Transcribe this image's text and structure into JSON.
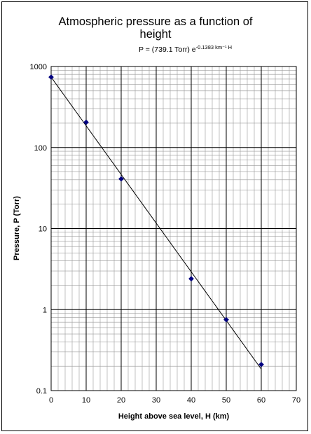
{
  "chart_data": {
    "type": "scatter",
    "title_line1": "Atmospheric pressure as a function of",
    "title_line2": "height",
    "equation": {
      "prefix": "P = (739.1 Torr) e",
      "exponent": "-0.1383 km⁻¹ H"
    },
    "xlabel": "Height above sea level, H (km)",
    "ylabel": "Pressure, P (Torr)",
    "x_scale": "linear",
    "y_scale": "log",
    "xlim": [
      0,
      70
    ],
    "ylim": [
      0.1,
      1000
    ],
    "x_ticks": [
      0,
      10,
      20,
      30,
      40,
      50,
      60,
      70
    ],
    "y_ticks": [
      0.1,
      1,
      10,
      100,
      1000
    ],
    "x_tick_labels": [
      "0",
      "10",
      "20",
      "30",
      "40",
      "50",
      "60",
      "70"
    ],
    "y_tick_labels": [
      "0.1",
      "1",
      "10",
      "100",
      "1000"
    ],
    "grid": true,
    "marker_color": "#00007f",
    "line_color": "#000000",
    "series": [
      {
        "x": [
          0,
          10,
          20,
          40,
          50,
          60
        ],
        "y": [
          740,
          205,
          41,
          2.4,
          0.75,
          0.21
        ]
      }
    ],
    "trendline": {
      "a": 739.1,
      "b": -0.1383
    }
  }
}
